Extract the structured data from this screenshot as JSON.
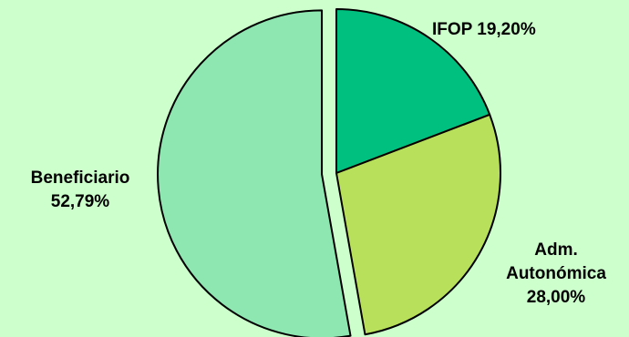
{
  "chart_data": {
    "type": "pie",
    "slices": [
      {
        "label": "IFOP",
        "value": 19.2,
        "value_text": "19,20%",
        "color": "#00c080"
      },
      {
        "label_lines": [
          "Adm.",
          "Autonómica"
        ],
        "value": 28.0,
        "value_text": "28,00%",
        "color": "#b8e05a"
      },
      {
        "label": "Beneficiario",
        "value": 52.79,
        "value_text": "52,79%",
        "color": "#8ee6b0",
        "exploded": true
      }
    ],
    "background": "#ccffcc",
    "outline_color": "#000000"
  },
  "labels": {
    "ifop": "IFOP 19,20%",
    "adm_line1": "Adm.",
    "adm_line2": "Autonómica",
    "adm_value": "28,00%",
    "ben_line1": "Beneficiario",
    "ben_value": "52,79%"
  }
}
